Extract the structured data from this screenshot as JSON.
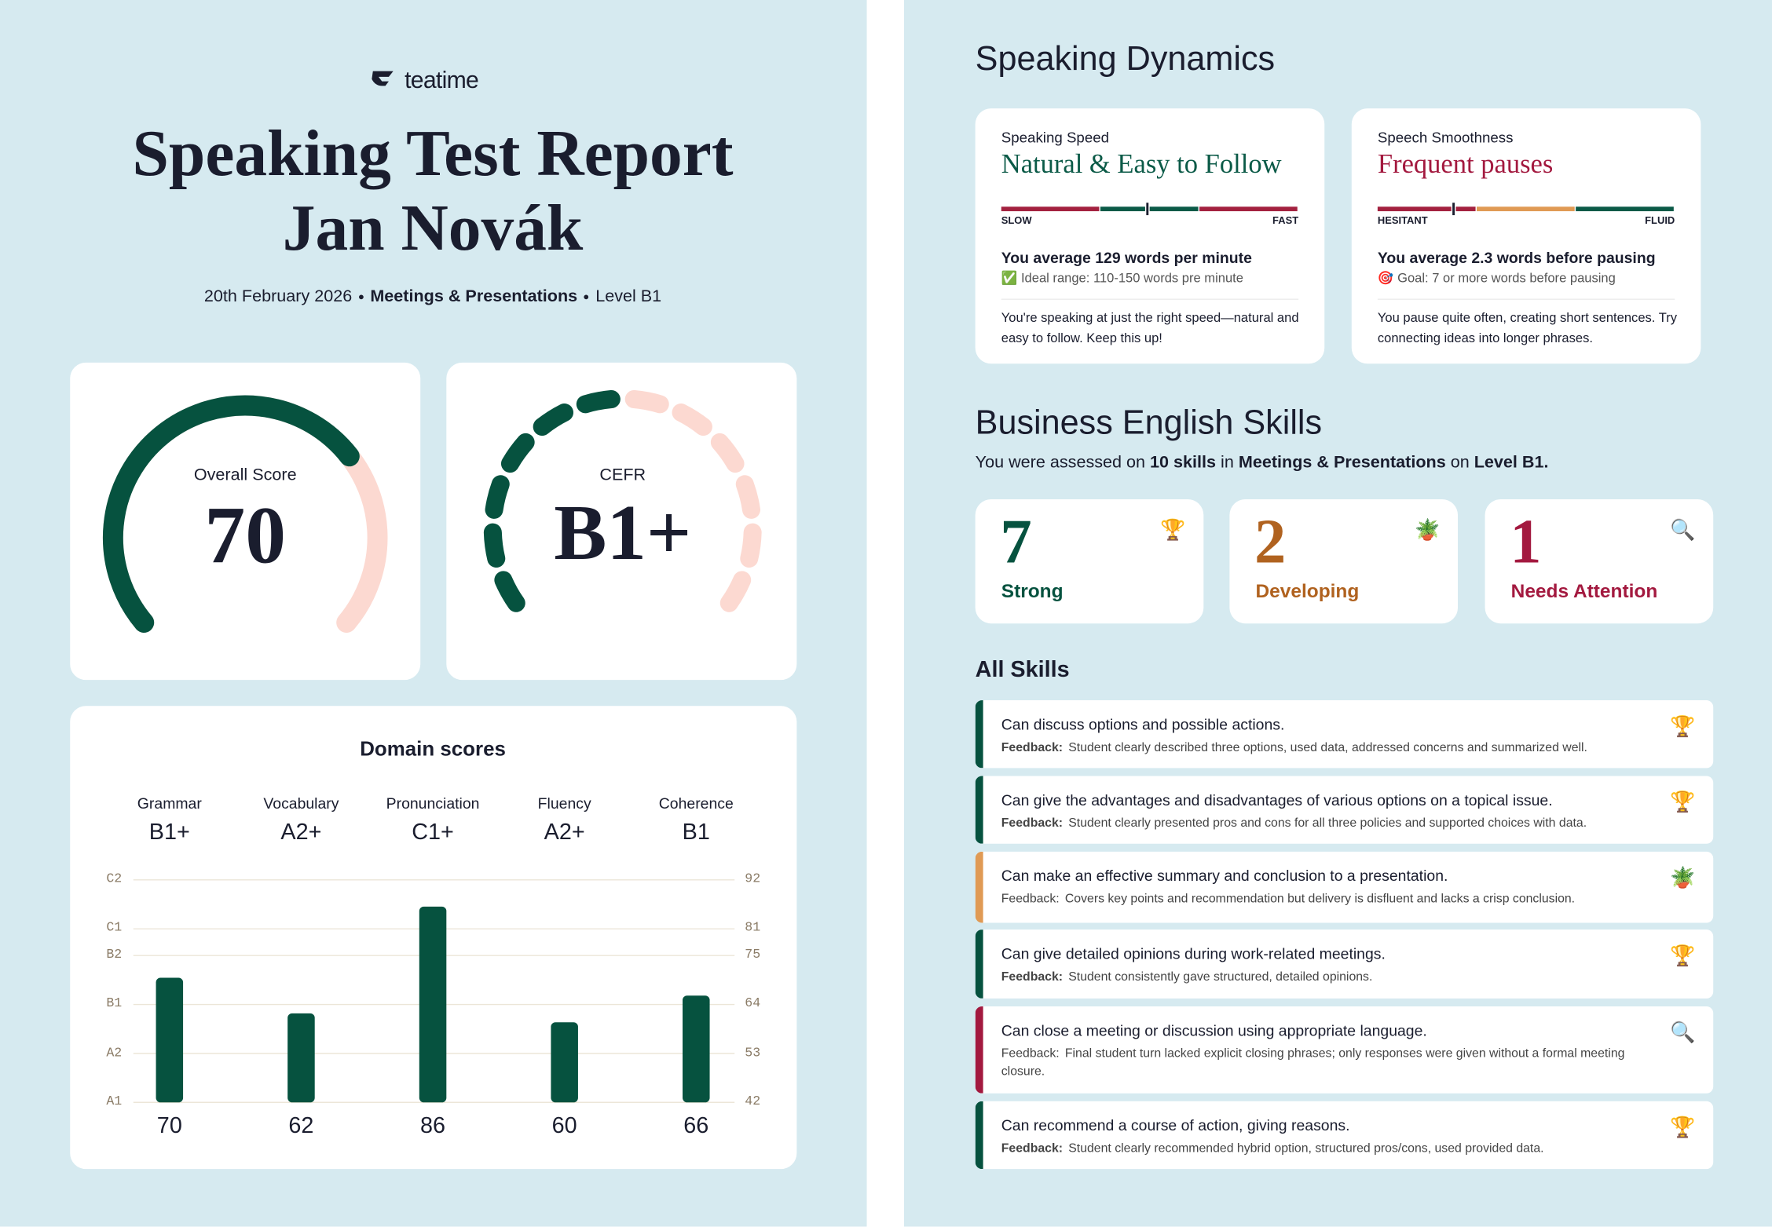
{
  "header": {
    "brand": "teatime",
    "title": "Speaking Test Report",
    "name": "Jan Novák",
    "meta": [
      {
        "text": "20th February 2026",
        "bold": false
      },
      {
        "text": "Meetings & Presentations",
        "bold": true
      },
      {
        "text": "Level B1",
        "bold": false
      }
    ]
  },
  "overall": {
    "label": "Overall Score",
    "value": 70,
    "range": [
      0,
      100
    ],
    "color": "#06523f",
    "track": "#fcd9d1"
  },
  "cefr": {
    "label": "CEFR",
    "value": "B1+",
    "segments": 12,
    "filled": 6,
    "color": "#06523f",
    "track": "#fcd9d1"
  },
  "chart_data": {
    "type": "bar",
    "title": "Domain scores",
    "categories": [
      "Grammar",
      "Vocabulary",
      "Pronunciation",
      "Fluency",
      "Coherence"
    ],
    "levels": [
      "B1+",
      "A2+",
      "C1+",
      "A2+",
      "B1"
    ],
    "values": [
      70,
      62,
      86,
      60,
      66
    ],
    "color": "#06523f",
    "ylim": [
      42,
      92
    ],
    "yticks": [
      {
        "value": 42,
        "label": "A1"
      },
      {
        "value": 53,
        "label": "A2"
      },
      {
        "value": 64,
        "label": "B1"
      },
      {
        "value": 75,
        "label": "B2"
      },
      {
        "value": 81,
        "label": "C1"
      },
      {
        "value": 92,
        "label": "C2"
      }
    ],
    "y2ticks": [
      42,
      53,
      64,
      75,
      81,
      92
    ],
    "grid": true
  },
  "dynamics": {
    "title": "Speaking Dynamics",
    "cards": [
      {
        "label": "Speaking Speed",
        "verdict": "Natural & Easy to Follow",
        "color": "#0b5a47",
        "scale_left": "SLOW",
        "scale_right": "FAST",
        "range": [
          70,
          190
        ],
        "marker": 129,
        "zones": [
          "#a3213f",
          "#0b5a47",
          "#a3213f"
        ],
        "stat": "You average 129 words per minute",
        "note": "✅ Ideal range: 110-150 words pre minute",
        "advice": "You're speaking at just the right speed—natural and easy to follow. Keep this up!"
      },
      {
        "label": "Speech Smoothness",
        "verdict": "Frequent pauses",
        "color": "#a3193f",
        "scale_left": "HESITANT",
        "scale_right": "FLUID",
        "range": [
          0,
          9
        ],
        "marker": 2.3,
        "zones": [
          "#a3213f",
          "#e09a54",
          "#0b5a47"
        ],
        "stat": "You average 2.3 words before pausing",
        "note": "🎯 Goal: 7 or more words before pausing",
        "advice": "You pause quite often, creating short sentences. Try connecting ideas into longer phrases."
      }
    ]
  },
  "skills": {
    "title": "Business English Skills",
    "intro": [
      {
        "text": "You were assessed on ",
        "bold": false
      },
      {
        "text": "10 skills",
        "bold": true
      },
      {
        "text": " in ",
        "bold": false
      },
      {
        "text": "Meetings & Presentations",
        "bold": true
      },
      {
        "text": " on ",
        "bold": false
      },
      {
        "text": "Level B1.",
        "bold": true
      }
    ],
    "summary": [
      {
        "count": "7",
        "label": "Strong",
        "icon": "🏆",
        "color": "#06523f"
      },
      {
        "count": "2",
        "label": "Developing",
        "icon": "🪴",
        "color": "#b0621f"
      },
      {
        "count": "1",
        "label": "Needs Attention",
        "icon": "🔍",
        "color": "#a3193f"
      }
    ],
    "all_title": "All Skills",
    "items": [
      {
        "skill": "Can discuss options and possible actions.",
        "feedback_label": "Feedback:",
        "label_bold": true,
        "feedback": "Student clearly described three options, used data, addressed concerns and summarized well.",
        "icon": "🏆",
        "color": "#06523f"
      },
      {
        "skill": "Can give the advantages and disadvantages of various options on a topical issue.",
        "feedback_label": "Feedback:",
        "label_bold": true,
        "feedback": "Student clearly presented pros and cons for all three policies and supported choices with data.",
        "icon": "🏆",
        "color": "#06523f"
      },
      {
        "skill": "Can make an effective summary and conclusion to a presentation.",
        "feedback_label": "Feedback:",
        "label_bold": false,
        "feedback": "Covers key points and recommendation but delivery is disfluent and lacks a crisp conclusion.",
        "icon": "🪴",
        "color": "#e09a54"
      },
      {
        "skill": "Can give detailed opinions during work-related meetings.",
        "feedback_label": "Feedback:",
        "label_bold": true,
        "feedback": "Student consistently gave structured, detailed opinions.",
        "icon": "🏆",
        "color": "#06523f"
      },
      {
        "skill": "Can close a meeting or discussion using appropriate language.",
        "feedback_label": "Feedback:",
        "label_bold": false,
        "feedback": "Final student turn lacked explicit closing phrases; only responses were given without a formal meeting closure.",
        "icon": "🔍",
        "color": "#a3193f"
      },
      {
        "skill": "Can recommend a course of action, giving reasons.",
        "feedback_label": "Feedback:",
        "label_bold": true,
        "feedback": "Student clearly recommended hybrid option, structured pros/cons, used provided data.",
        "icon": "🏆",
        "color": "#06523f"
      }
    ]
  }
}
